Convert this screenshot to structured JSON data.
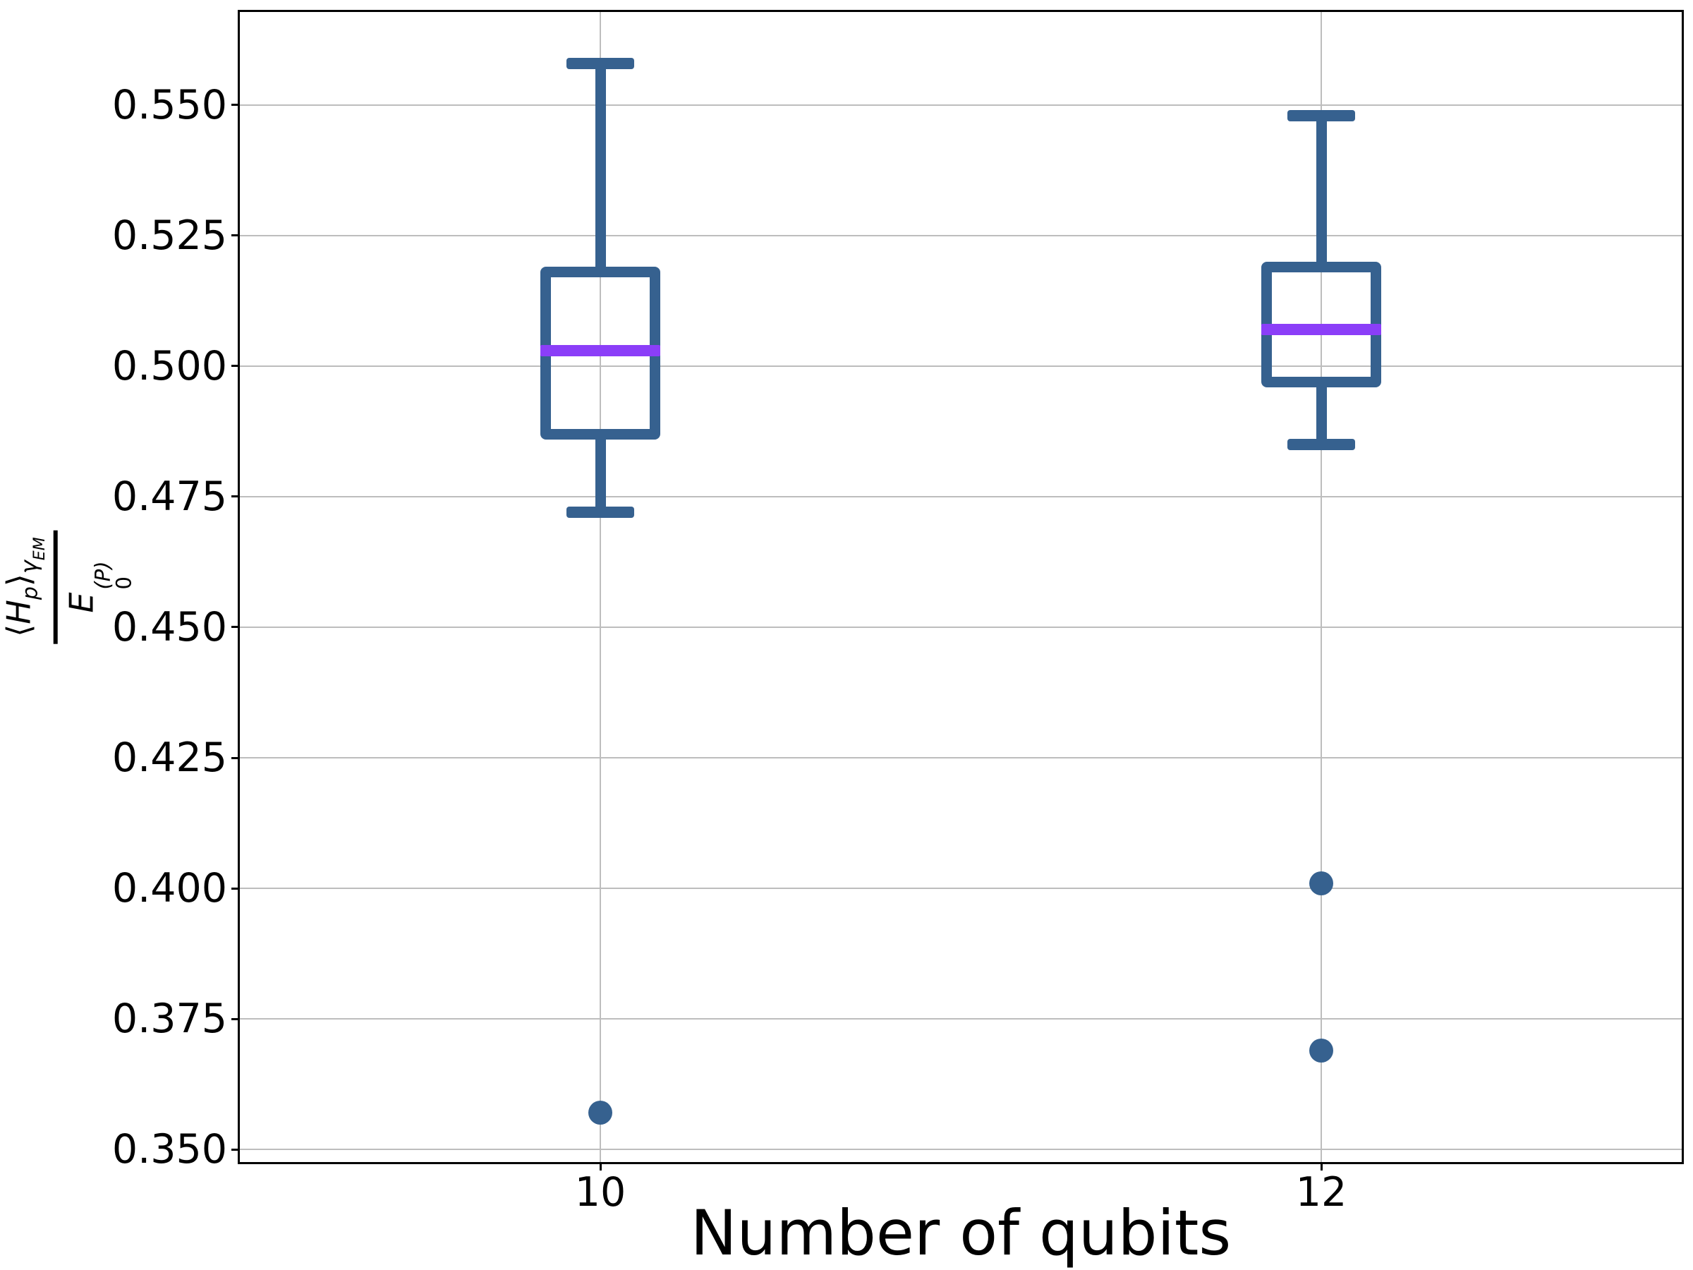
{
  "chart_data": {
    "type": "boxplot",
    "title": "",
    "xlabel": "Number of qubits",
    "ylabel": {
      "lang": "⟨",
      "h": "H",
      "h_sub": "p",
      "rang": "⟩",
      "sub_main": "γ",
      "sub_sub": "EM",
      "den_base": "E",
      "den_sub": "0",
      "den_sup": "(P)"
    },
    "categories": [
      "10",
      "12"
    ],
    "series": [
      {
        "label": "10",
        "whisker_low": 0.472,
        "q1": 0.487,
        "median": 0.503,
        "q3": 0.518,
        "whisker_high": 0.558,
        "outliers": [
          0.357
        ]
      },
      {
        "label": "12",
        "whisker_low": 0.485,
        "q1": 0.497,
        "median": 0.507,
        "q3": 0.519,
        "whisker_high": 0.548,
        "outliers": [
          0.401,
          0.369
        ]
      }
    ],
    "yticks": [
      "0.350",
      "0.375",
      "0.400",
      "0.425",
      "0.450",
      "0.475",
      "0.500",
      "0.525",
      "0.550"
    ],
    "ylim": [
      0.3476,
      0.5678
    ],
    "grid": true,
    "legend": "none",
    "colors": {
      "box": "#36618F",
      "median": "#8B3EF8",
      "outlier": "#36618F",
      "grid": "#BDBDBD",
      "spine": "#000000"
    }
  }
}
